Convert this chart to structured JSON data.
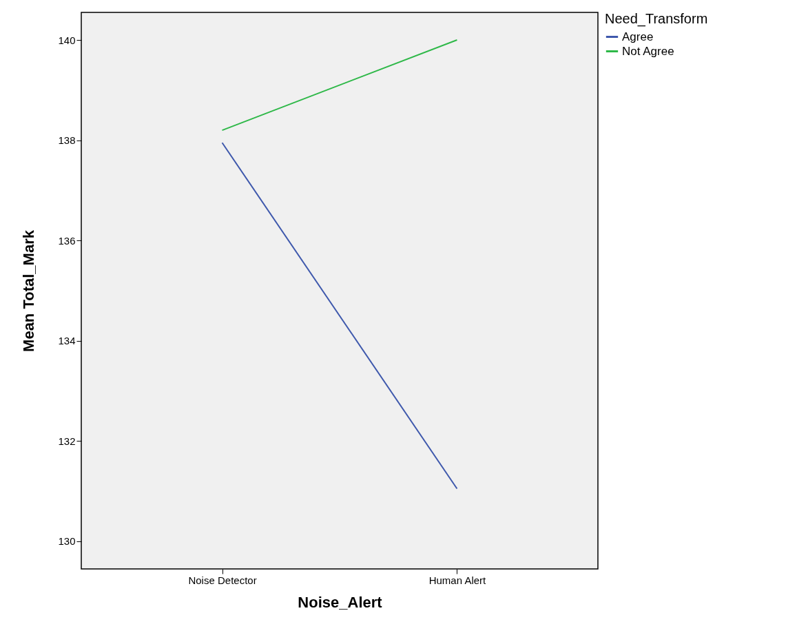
{
  "chart_data": {
    "type": "line",
    "xlabel": "Noise_Alert",
    "ylabel": "Mean Total_Mark",
    "legend_title": "Need_Transform",
    "categories": [
      "Noise Detector",
      "Human Alert"
    ],
    "series": [
      {
        "name": "Agree",
        "color": "#3e58ac",
        "values": [
          137.95,
          131.05
        ]
      },
      {
        "name": "Not Agree",
        "color": "#2eb848",
        "values": [
          138.2,
          140.0
        ]
      }
    ],
    "ylim": [
      129.45,
      140.55
    ],
    "yticks": [
      130,
      132,
      134,
      136,
      138,
      140
    ],
    "grid": false,
    "legend": "top right",
    "marker": "none",
    "line_style": "solid"
  }
}
